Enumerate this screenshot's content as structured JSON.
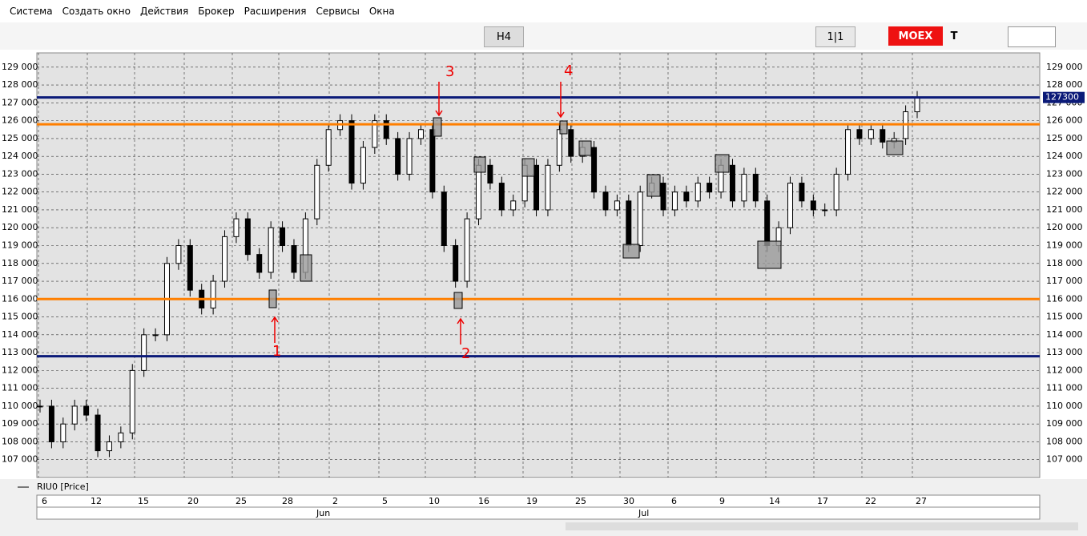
{
  "menu": [
    "Система",
    "Создать окно",
    "Действия",
    "Брокер",
    "Расширения",
    "Сервисы",
    "Окна"
  ],
  "toolbar": {
    "interval": "H4",
    "pager": "1|1",
    "exchange": "MOEX",
    "cut": "T"
  },
  "chart_data": {
    "type": "candlestick",
    "legend": "RIU0 [Price]",
    "ylim": [
      106000,
      129800
    ],
    "yticks": [
      {
        "value": 107000,
        "label": "107 000"
      },
      {
        "value": 108000,
        "label": "108 000"
      },
      {
        "value": 109000,
        "label": "109 000"
      },
      {
        "value": 110000,
        "label": "110 000"
      },
      {
        "value": 111000,
        "label": "111 000"
      },
      {
        "value": 112000,
        "label": "112 000"
      },
      {
        "value": 113000,
        "label": "113 000"
      },
      {
        "value": 114000,
        "label": "114 000"
      },
      {
        "value": 115000,
        "label": "115 000"
      },
      {
        "value": 116000,
        "label": "116 000"
      },
      {
        "value": 117000,
        "label": "117 000"
      },
      {
        "value": 118000,
        "label": "118 000"
      },
      {
        "value": 119000,
        "label": "119 000"
      },
      {
        "value": 120000,
        "label": "120 000"
      },
      {
        "value": 121000,
        "label": "121 000"
      },
      {
        "value": 122000,
        "label": "122 000"
      },
      {
        "value": 123000,
        "label": "123 000"
      },
      {
        "value": 124000,
        "label": "124 000"
      },
      {
        "value": 125000,
        "label": "125 000"
      },
      {
        "value": 126000,
        "label": "126 000"
      },
      {
        "value": 127000,
        "label": "127 000"
      },
      {
        "value": 128000,
        "label": "128 000"
      },
      {
        "value": 129000,
        "label": "129 000"
      }
    ],
    "days": [
      "6",
      "12",
      "15",
      "20",
      "25",
      "28",
      "2",
      "5",
      "10",
      "16",
      "19",
      "25",
      "30",
      "6",
      "9",
      "14",
      "17",
      "22",
      "27"
    ],
    "months": [
      "Jun",
      "Jul"
    ],
    "last_price": 127300,
    "levels": [
      {
        "value": 125800,
        "color": "#ff7f00"
      },
      {
        "value": 116000,
        "color": "#ff7f00"
      },
      {
        "value": 112800,
        "color": "#0b1a78"
      }
    ],
    "closes": [
      110000,
      108000,
      109000,
      110000,
      109500,
      107500,
      108000,
      108500,
      112000,
      114000,
      114000,
      118000,
      119000,
      116500,
      115500,
      117000,
      119500,
      120500,
      118500,
      117500,
      120000,
      119000,
      117500,
      120500,
      123500,
      125500,
      126000,
      122500,
      124500,
      126000,
      125000,
      123000,
      125000,
      125500,
      122000,
      119000,
      117000,
      120500,
      123500,
      122500,
      121000,
      121500,
      123500,
      121000,
      123500,
      125500,
      124000,
      124500,
      122000,
      121000,
      121500,
      119000,
      122000,
      122500,
      121000,
      122000,
      121500,
      122500,
      122000,
      123500,
      121500,
      123000,
      121500,
      119000,
      120000,
      122500,
      121500,
      121000,
      121000,
      123000,
      125500,
      125000,
      125500,
      124800,
      125000,
      126500,
      127300
    ]
  },
  "annotations": [
    "3",
    "4",
    "1",
    "2"
  ]
}
